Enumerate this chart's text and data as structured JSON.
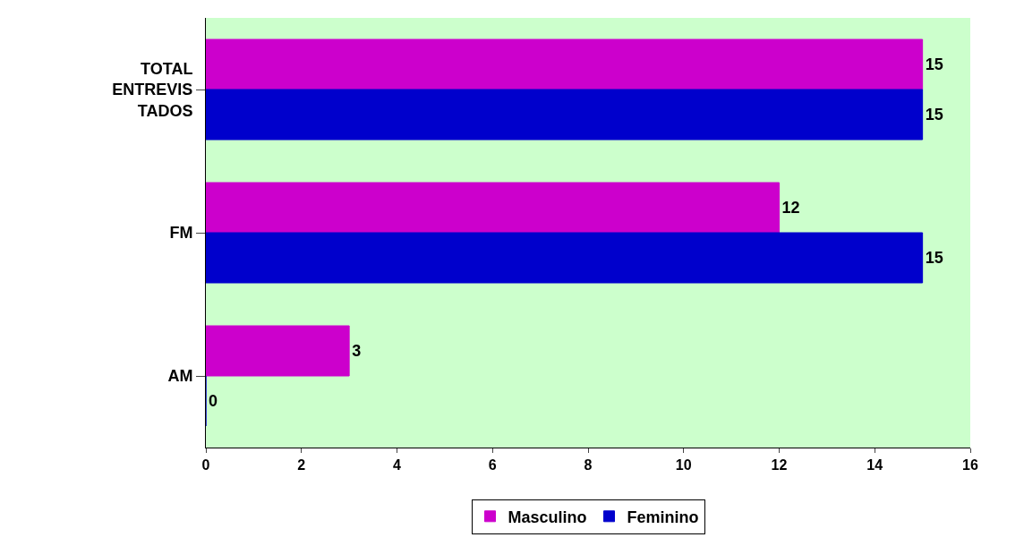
{
  "chart_data": {
    "type": "bar",
    "orientation": "horizontal",
    "categories": [
      "TOTAL ENTREVIS TADOS",
      "FM",
      "AM"
    ],
    "series": [
      {
        "name": "Masculino",
        "color": "#cc00cc",
        "values": [
          15,
          12,
          3
        ]
      },
      {
        "name": "Feminino",
        "color": "#0000cc",
        "values": [
          15,
          15,
          0
        ]
      }
    ],
    "xlim": [
      0,
      16
    ],
    "xticks": [
      0,
      2,
      4,
      6,
      8,
      10,
      12,
      14,
      16
    ],
    "data_labels": true,
    "legend": "bottom",
    "grid": false
  }
}
